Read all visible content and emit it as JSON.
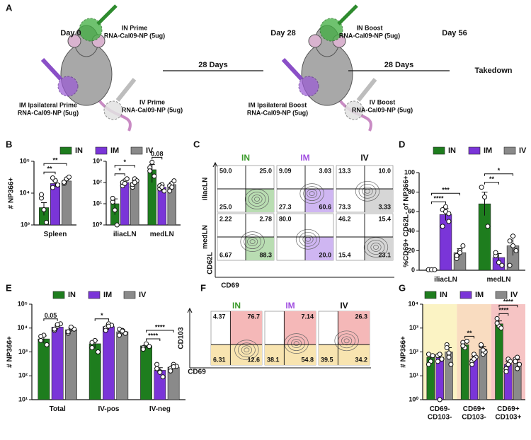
{
  "schematic": {
    "panel_label": "A",
    "mice": [
      {
        "day": "Day 0",
        "in": [
          "IN  Prime",
          "RNA-Cal09-NP (5ug)"
        ],
        "im": [
          "IM Ipsilateral Prime",
          "RNA-Cal09-NP (5ug)"
        ],
        "iv": [
          "IV Prime",
          "RNA-Cal09-NP (5ug)"
        ]
      },
      {
        "day": "Day 28",
        "in": [
          "IN  Boost",
          "RNA-Cal09-NP (5ug)"
        ],
        "im": [
          "IM Ipsilateral Boost",
          "RNA-Cal09-NP (5ug)"
        ],
        "iv": [
          "IV Boost",
          "RNA-Cal09-NP (5ug)"
        ]
      }
    ],
    "intervals": [
      "28 Days",
      "28 Days"
    ],
    "end_day": "Day 56",
    "end_label": "Takedown"
  },
  "chart_data": [
    {
      "type": "bar",
      "panel_label": "B",
      "ylabel": "# NP366+",
      "log": true,
      "legend": "top",
      "series": [
        {
          "name": "IN",
          "color": "#1e7d1e",
          "values": [
            3500,
            10,
            400
          ],
          "errors": [
            1500,
            7,
            300
          ],
          "points": [
            [
              7000,
              3000,
              1200,
              9000
            ],
            [
              12,
              5,
              1,
              18
            ],
            [
              500,
              900,
              200,
              350
            ]
          ]
        },
        {
          "name": "IM",
          "color": "#7a35d8",
          "values": [
            20000,
            100,
            60
          ],
          "errors": [
            4000,
            20,
            15
          ],
          "points": [
            [
              15000,
              25000,
              18000,
              30000
            ],
            [
              70,
              120,
              150,
              100,
              90
            ],
            [
              50,
              80,
              40,
              70,
              60
            ]
          ]
        },
        {
          "name": "IV",
          "color": "#8a8a8a",
          "values": [
            24000,
            100,
            80
          ],
          "errors": [
            3000,
            25,
            20
          ],
          "points": [
            [
              20000,
              28000,
              32000,
              22000
            ],
            [
              60,
              150,
              120,
              80,
              100
            ],
            [
              40,
              90,
              120,
              70,
              60
            ]
          ]
        }
      ],
      "panels": [
        {
          "categories": [
            "Spleen"
          ],
          "ylim": [
            1000,
            100000
          ],
          "yticks": [
            {
              "value": 1000,
              "label": "10³"
            },
            {
              "value": 10000,
              "label": "10⁴"
            },
            {
              "value": 100000,
              "label": "10⁵"
            }
          ]
        },
        {
          "categories": [
            "iliacLN",
            "medLN"
          ],
          "ylim": [
            1,
            1000
          ],
          "yticks": [
            {
              "value": 1,
              "label": "10⁰"
            },
            {
              "value": 10,
              "label": "10¹"
            },
            {
              "value": 100,
              "label": "10²"
            },
            {
              "value": 1000,
              "label": "10³"
            }
          ]
        }
      ],
      "annotations": [
        {
          "label": "**",
          "category": "Spleen",
          "from": "IN",
          "to": "IM"
        },
        {
          "label": "**",
          "category": "Spleen",
          "from": "IN",
          "to": "IV"
        },
        {
          "label": "*",
          "category": "iliacLN",
          "from": "IN",
          "to": "IM"
        },
        {
          "label": "*",
          "category": "iliacLN",
          "from": "IN",
          "to": "IV"
        },
        {
          "label": "0.08",
          "category": "medLN",
          "from": "IN",
          "to": "IM"
        }
      ]
    },
    {
      "type": "bar",
      "panel_label": "D",
      "ylabel": "%CD69+ CD62L- of NP366+",
      "log": false,
      "legend": "top",
      "series": [
        {
          "name": "IN",
          "color": "#1e7d1e",
          "values": [
            0.5,
            68
          ],
          "errors": [
            0.3,
            12
          ],
          "points": [
            [
              0.5,
              0.5,
              0.5
            ],
            [
              85,
              75,
              45
            ]
          ]
        },
        {
          "name": "IM",
          "color": "#7a35d8",
          "values": [
            57,
            13
          ],
          "errors": [
            6,
            4
          ],
          "points": [
            [
              62,
              60,
              50,
              45,
              65,
              58
            ],
            [
              15,
              8,
              5,
              18
            ]
          ]
        },
        {
          "name": "IV",
          "color": "#8a8a8a",
          "values": [
            18,
            25
          ],
          "errors": [
            4,
            10
          ],
          "points": [
            [
              12,
              20,
              25,
              15,
              18
            ],
            [
              5,
              35,
              20,
              30,
              25
            ]
          ]
        }
      ],
      "panels": [
        {
          "categories": [
            "iliacLN",
            "medLN"
          ],
          "ylim": [
            0,
            100
          ],
          "yticks": [
            0,
            20,
            40,
            60,
            80,
            100
          ]
        }
      ],
      "annotations": [
        {
          "label": "****",
          "category": "iliacLN",
          "from": "IN",
          "to": "IM"
        },
        {
          "label": "***",
          "category": "iliacLN",
          "from": "IN",
          "to": "IV"
        },
        {
          "label": "**",
          "category": "medLN",
          "from": "IN",
          "to": "IM"
        },
        {
          "label": "*",
          "category": "medLN",
          "from": "IN",
          "to": "IV"
        }
      ]
    },
    {
      "type": "bar",
      "panel_label": "E",
      "ylabel": "# NP366+",
      "log": true,
      "legend": "top",
      "series": [
        {
          "name": "IN",
          "color": "#1e7d1e",
          "values": [
            3500,
            2200,
            1800
          ],
          "errors": [
            1200,
            800,
            300
          ],
          "points": [
            [
              3000,
              5000,
              2000,
              4500
            ],
            [
              1500,
              3000,
              1000,
              2500
            ],
            [
              1500,
              2200,
              1700,
              1300
            ]
          ]
        },
        {
          "name": "IM",
          "color": "#7a35d8",
          "values": [
            11000,
            11500,
            170
          ],
          "errors": [
            2500,
            3000,
            50
          ],
          "points": [
            [
              8000,
              12000,
              15000,
              9000,
              14000
            ],
            [
              10000,
              15000,
              13000,
              8000,
              12000
            ],
            [
              300,
              150,
              90,
              200,
              140
            ]
          ]
        },
        {
          "name": "IV",
          "color": "#8a8a8a",
          "values": [
            8500,
            7000,
            230
          ],
          "errors": [
            1500,
            1500,
            40
          ],
          "points": [
            [
              6000,
              10000,
              9000,
              7000,
              11000
            ],
            [
              5000,
              8000,
              6000,
              9000,
              7500
            ],
            [
              200,
              300,
              250,
              160,
              240
            ]
          ]
        }
      ],
      "panels": [
        {
          "categories": [
            "Total",
            "IV-pos",
            "IV-neg"
          ],
          "ylim": [
            10,
            100000
          ],
          "yticks": [
            {
              "value": 10,
              "label": "10¹"
            },
            {
              "value": 100,
              "label": "10²"
            },
            {
              "value": 1000,
              "label": "10³"
            },
            {
              "value": 10000,
              "label": "10⁴"
            },
            {
              "value": 100000,
              "label": "10⁵"
            }
          ]
        }
      ],
      "annotations": [
        {
          "label": "0.05",
          "category": "Total",
          "from": "IN",
          "to": "IM"
        },
        {
          "label": "*",
          "category": "IV-pos",
          "from": "IN",
          "to": "IM"
        },
        {
          "label": "****",
          "category": "IV-neg",
          "from": "IN",
          "to": "IM"
        },
        {
          "label": "****",
          "category": "IV-neg",
          "from": "IN",
          "to": "IV"
        }
      ]
    },
    {
      "type": "bar",
      "panel_label": "G",
      "ylabel": "# NP366+",
      "log": true,
      "legend": "top",
      "band_colors": [
        "#fbf3c4",
        "#f9dcc0",
        "#f6c4c4"
      ],
      "series": [
        {
          "name": "IN",
          "color": "#1e7d1e",
          "values": [
            60,
            200,
            1500
          ],
          "errors": [
            20,
            60,
            500
          ],
          "points": [
            [
              80,
              40,
              70,
              30
            ],
            [
              250,
              150,
              280,
              180
            ],
            [
              2500,
              1200,
              1000,
              1600
            ]
          ]
        },
        {
          "name": "IM",
          "color": "#7a35d8",
          "values": [
            60,
            50,
            30
          ],
          "errors": [
            15,
            15,
            10
          ],
          "points": [
            [
              70,
              80,
              50,
              40,
              1
            ],
            [
              40,
              80,
              60,
              30,
              50
            ],
            [
              20,
              50,
              40,
              15,
              30
            ]
          ]
        },
        {
          "name": "IV",
          "color": "#8a8a8a",
          "values": [
            100,
            130,
            35
          ],
          "errors": [
            50,
            40,
            12
          ],
          "points": [
            [
              200,
              60,
              30,
              150,
              90
            ],
            [
              180,
              80,
              100,
              200,
              120
            ],
            [
              50,
              20,
              30,
              40,
              60
            ]
          ]
        }
      ],
      "panels": [
        {
          "categories": [
            "CD69- CD103-",
            "CD69+ CD103-",
            "CD69+ CD103+"
          ],
          "ylim": [
            1,
            10000
          ],
          "yticks": [
            {
              "value": 1,
              "label": "10⁰"
            },
            {
              "value": 10,
              "label": "10¹"
            },
            {
              "value": 100,
              "label": "10²"
            },
            {
              "value": 1000,
              "label": "10³"
            },
            {
              "value": 10000,
              "label": "10⁴"
            }
          ]
        }
      ],
      "annotations": [
        {
          "label": "**",
          "category": "CD69+ CD103-",
          "from": "IN",
          "to": "IM"
        },
        {
          "label": "****",
          "category": "CD69+ CD103+",
          "from": "IN",
          "to": "IM"
        },
        {
          "label": "****",
          "category": "CD69+ CD103+",
          "from": "IN",
          "to": "IV"
        }
      ]
    }
  ],
  "flow_plots": [
    {
      "panel_label": "C",
      "xlabel": "CD69",
      "ylabel": "CD62L",
      "rows": [
        "iliacLN",
        "medLN"
      ],
      "columns": [
        {
          "name": "IN",
          "color": "#3a9a2a",
          "fills": {
            "br": "#b9ddb2"
          }
        },
        {
          "name": "IM",
          "color": "#a04de0",
          "fills": {
            "br": "#cfb6f2"
          }
        },
        {
          "name": "IV",
          "color": "#111111",
          "fills": {
            "br": "#d6d6d6"
          }
        }
      ],
      "gates": [
        [
          {
            "tl": "50.0",
            "tr": "25.0",
            "bl": "25.0",
            "br": null
          },
          {
            "tl": "9.09",
            "tr": "3.03",
            "bl": "27.3",
            "br": "60.6"
          },
          {
            "tl": "13.3",
            "tr": "10.0",
            "bl": "73.3",
            "br": "3.33"
          }
        ],
        [
          {
            "tl": "2.22",
            "tr": "2.78",
            "bl": "6.67",
            "br": "88.3"
          },
          {
            "tl": "80.0",
            "tr": null,
            "bl": null,
            "br": "20.0"
          },
          {
            "tl": "46.2",
            "tr": "15.4",
            "bl": "15.4",
            "br": "23.1"
          }
        ]
      ]
    },
    {
      "panel_label": "F",
      "xlabel": "CD69",
      "ylabel": "CD103",
      "columns": [
        {
          "name": "IN",
          "color": "#3a9a2a",
          "fills": {
            "tr": "#f5b8b8",
            "bl": "#f8e4b0",
            "br": "#f8e4b0"
          }
        },
        {
          "name": "IM",
          "color": "#a04de0",
          "fills": {
            "tr": "#f5b8b8",
            "bl": "#f8e4b0",
            "br": "#f8e4b0"
          }
        },
        {
          "name": "IV",
          "color": "#111111",
          "fills": {
            "tr": "#f5b8b8",
            "bl": "#f8e4b0",
            "br": "#f8e4b0"
          }
        }
      ],
      "gates": [
        [
          {
            "tl": "4.37",
            "tr": "76.7",
            "bl": "6.31",
            "br": "12.6"
          },
          {
            "tl": null,
            "tr": "7.14",
            "bl": "38.1",
            "br": "54.8"
          },
          {
            "tl": null,
            "tr": "26.3",
            "bl": "39.5",
            "br": "34.2"
          }
        ]
      ]
    }
  ]
}
